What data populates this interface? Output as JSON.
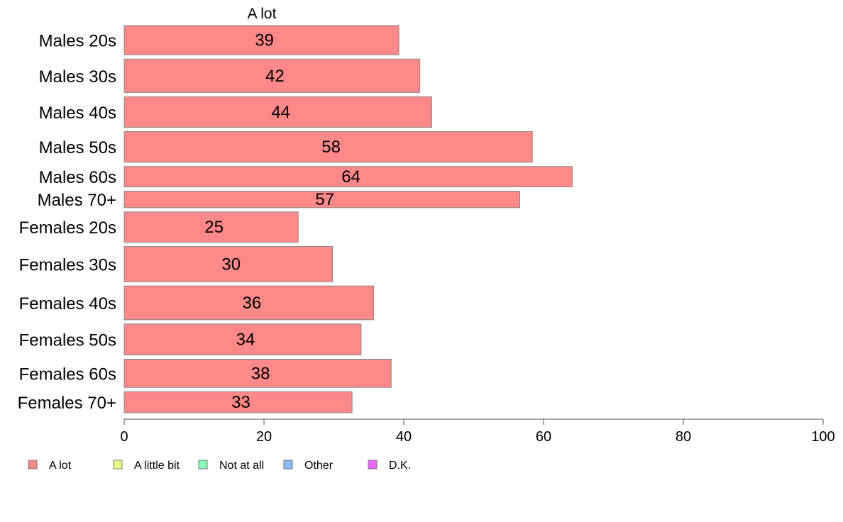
{
  "chart_data": {
    "type": "bar",
    "orientation": "horizontal",
    "top_label": "A lot",
    "categories": [
      "Males 20s",
      "Males 30s",
      "Males 40s",
      "Males 50s",
      "Males 60s",
      "Males 70+",
      "Females 20s",
      "Females 30s",
      "Females 40s",
      "Females 50s",
      "Females 60s",
      "Females 70+"
    ],
    "category_weights": [
      0.83,
      0.95,
      0.87,
      0.87,
      0.58,
      0.47,
      0.86,
      1.0,
      0.96,
      0.88,
      0.8,
      0.6
    ],
    "series": [
      {
        "name": "A lot",
        "color": "#ff8888",
        "values": [
          39.3,
          42.3,
          44.0,
          58.4,
          64.1,
          56.6,
          24.9,
          29.8,
          35.7,
          33.9,
          38.2,
          32.6
        ],
        "labels": [
          "39",
          "42",
          "44",
          "58",
          "64",
          "57",
          "25",
          "30",
          "36",
          "34",
          "38",
          "33"
        ]
      }
    ],
    "xlim": [
      0,
      100
    ],
    "xticks": [
      0,
      20,
      40,
      60,
      80,
      100
    ],
    "grid": false,
    "legend_position": "bottom",
    "legend": [
      {
        "label": "A lot",
        "color": "#ff8888"
      },
      {
        "label": "A little bit",
        "color": "#eeff88"
      },
      {
        "label": "Not at all",
        "color": "#88ffbb"
      },
      {
        "label": "Other",
        "color": "#88bbff"
      },
      {
        "label": "D.K.",
        "color": "#ee66ff"
      }
    ],
    "bar_stroke": "#888888",
    "axis_color": "#555555"
  }
}
